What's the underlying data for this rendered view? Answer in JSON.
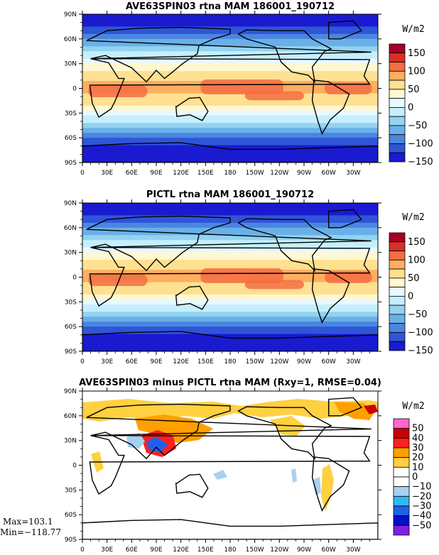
{
  "chart_data": [
    {
      "type": "heatmap",
      "title": "AVE63SPIN03 rtna MAM 186001_190712",
      "x_ticks": [
        "0",
        "30E",
        "60E",
        "90E",
        "120E",
        "150E",
        "180",
        "150W",
        "120W",
        "90W",
        "60W",
        "30W"
      ],
      "y_ticks": [
        "90N",
        "60N",
        "30N",
        "0",
        "30S",
        "60S",
        "90S"
      ],
      "xlim": [
        0,
        360
      ],
      "ylim": [
        -90,
        90
      ],
      "unit": "W/m2",
      "colorbar": {
        "labels": [
          "150",
          "100",
          "50",
          "0",
          "−50",
          "−100",
          "−150"
        ],
        "colors": [
          "#a50026",
          "#d73027",
          "#f46d43",
          "#fdae61",
          "#fee090",
          "#fff8d0",
          "#e8f9ff",
          "#c5efff",
          "#92d3f0",
          "#6ab0e8",
          "#4a86e0",
          "#2f55d8",
          "#1a1ad0"
        ]
      },
      "zonal_profile": {
        "lat": [
          90,
          75,
          60,
          45,
          30,
          15,
          0,
          -15,
          -30,
          -45,
          -60,
          -75,
          -90
        ],
        "value": [
          -165,
          -130,
          -80,
          -30,
          20,
          70,
          80,
          65,
          15,
          -40,
          -100,
          -150,
          -165
        ]
      }
    },
    {
      "type": "heatmap",
      "title": "PICTL rtna MAM 186001_190712",
      "x_ticks": [
        "0",
        "30E",
        "60E",
        "90E",
        "120E",
        "150E",
        "180",
        "150W",
        "120W",
        "90W",
        "60W",
        "30W"
      ],
      "y_ticks": [
        "90N",
        "60N",
        "30N",
        "0",
        "30S",
        "60S",
        "90S"
      ],
      "xlim": [
        0,
        360
      ],
      "ylim": [
        -90,
        90
      ],
      "unit": "W/m2",
      "colorbar": {
        "labels": [
          "150",
          "100",
          "50",
          "0",
          "−50",
          "−100",
          "−150"
        ],
        "colors": [
          "#a50026",
          "#d73027",
          "#f46d43",
          "#fdae61",
          "#fee090",
          "#fff8d0",
          "#e8f9ff",
          "#c5efff",
          "#92d3f0",
          "#6ab0e8",
          "#4a86e0",
          "#2f55d8",
          "#1a1ad0"
        ]
      },
      "zonal_profile": {
        "lat": [
          90,
          75,
          60,
          45,
          30,
          15,
          0,
          -15,
          -30,
          -45,
          -60,
          -75,
          -90
        ],
        "value": [
          -165,
          -130,
          -80,
          -30,
          20,
          70,
          80,
          65,
          15,
          -40,
          -100,
          -150,
          -165
        ]
      }
    },
    {
      "type": "heatmap",
      "title": "AVE63SPIN03 minus PICTL rtna MAM (Rxy=1, RMSE=0.04)",
      "x_ticks": [
        "0",
        "30E",
        "60E",
        "90E",
        "120E",
        "150E",
        "180",
        "150W",
        "120W",
        "90W",
        "60W",
        "30W"
      ],
      "y_ticks": [
        "90N",
        "60N",
        "30N",
        "0",
        "30S",
        "60S",
        "90S"
      ],
      "xlim": [
        0,
        360
      ],
      "ylim": [
        -90,
        90
      ],
      "unit": "W/m2",
      "colorbar": {
        "labels": [
          "50",
          "40",
          "30",
          "20",
          "10",
          "0",
          "−10",
          "−20",
          "−30",
          "−40",
          "−50"
        ],
        "colors": [
          "#ff66cc",
          "#cc0000",
          "#ff2020",
          "#ffa000",
          "#ffd040",
          "#ffffff",
          "#ffffff",
          "#a8d0f0",
          "#30b8f0",
          "#2060e8",
          "#0010c8",
          "#8020e0"
        ]
      },
      "stats": {
        "max": "Max=103.1",
        "min": "Min=−118.77"
      }
    }
  ]
}
